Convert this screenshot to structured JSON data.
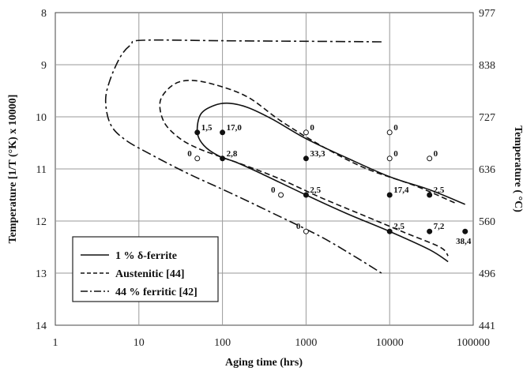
{
  "chart_data": {
    "type": "line",
    "xlabel": "Aging time (hrs)",
    "ylabel": "Temperature [1/T (°K) x 10000]",
    "ylabel_right": "Temperature ( °C)",
    "x_scale": "log",
    "xlim": [
      1,
      100000
    ],
    "ylim": [
      8,
      14
    ],
    "y_inverted": true,
    "grid": true,
    "x_ticks": [
      "1",
      "10",
      "100",
      "1000",
      "10000",
      "100000"
    ],
    "y_ticks": [
      "8",
      "9",
      "10",
      "11",
      "12",
      "13",
      "14"
    ],
    "y_right_ticks": [
      "977",
      "838",
      "727",
      "636",
      "560",
      "496",
      "441"
    ],
    "legend": {
      "position": "bottom-left",
      "entries": [
        {
          "series": "delta",
          "label": "1 % δ-ferrite"
        },
        {
          "series": "austenitic",
          "label": "Austenitic [44]"
        },
        {
          "series": "ferritic",
          "label": "44 % ferritic [42]"
        }
      ]
    },
    "series": [
      {
        "key": "delta",
        "name": "1 % δ-ferrite",
        "style": "solid",
        "points": [
          [
            80000,
            11.68
          ],
          [
            30000,
            11.4
          ],
          [
            10000,
            11.15
          ],
          [
            3000,
            10.78
          ],
          [
            1000,
            10.42
          ],
          [
            400,
            10.05
          ],
          [
            200,
            9.82
          ],
          [
            120,
            9.74
          ],
          [
            80,
            9.78
          ],
          [
            55,
            9.95
          ],
          [
            50,
            10.3
          ],
          [
            60,
            10.55
          ],
          [
            90,
            10.75
          ],
          [
            150,
            10.88
          ],
          [
            300,
            11.1
          ],
          [
            1000,
            11.5
          ],
          [
            3000,
            11.85
          ],
          [
            10000,
            12.2
          ],
          [
            30000,
            12.55
          ],
          [
            50000,
            12.78
          ]
        ]
      },
      {
        "key": "austenitic",
        "name": "Austenitic [44]",
        "style": "dashed",
        "points": [
          [
            60000,
            11.65
          ],
          [
            20000,
            11.32
          ],
          [
            5000,
            10.98
          ],
          [
            1500,
            10.55
          ],
          [
            500,
            10.08
          ],
          [
            200,
            9.62
          ],
          [
            80,
            9.38
          ],
          [
            40,
            9.3
          ],
          [
            25,
            9.4
          ],
          [
            18,
            9.7
          ],
          [
            20,
            10.1
          ],
          [
            30,
            10.4
          ],
          [
            50,
            10.6
          ],
          [
            100,
            10.78
          ],
          [
            200,
            10.95
          ],
          [
            500,
            11.2
          ],
          [
            1500,
            11.55
          ],
          [
            5000,
            11.9
          ],
          [
            15000,
            12.22
          ],
          [
            40000,
            12.5
          ],
          [
            50000,
            12.67
          ]
        ]
      },
      {
        "key": "ferritic",
        "name": "44 % ferritic [42]",
        "style": "dashdot",
        "points": [
          [
            8000,
            8.56
          ],
          [
            1000,
            8.55
          ],
          [
            100,
            8.54
          ],
          [
            11,
            8.53
          ],
          [
            8,
            8.62
          ],
          [
            6,
            8.85
          ],
          [
            4.5,
            9.3
          ],
          [
            4,
            9.7
          ],
          [
            4.6,
            10.15
          ],
          [
            7,
            10.45
          ],
          [
            15,
            10.75
          ],
          [
            40,
            11.1
          ],
          [
            120,
            11.45
          ],
          [
            400,
            11.85
          ],
          [
            1500,
            12.3
          ],
          [
            4000,
            12.7
          ],
          [
            8000,
            13
          ]
        ]
      }
    ],
    "points": [
      {
        "x": 50,
        "y": 10.3,
        "filled": true,
        "label": "1,5"
      },
      {
        "x": 100,
        "y": 10.3,
        "filled": true,
        "label": "17,0"
      },
      {
        "x": 100,
        "y": 10.8,
        "filled": true,
        "label": "2,8"
      },
      {
        "x": 50,
        "y": 10.8,
        "filled": false,
        "label": "0"
      },
      {
        "x": 1000,
        "y": 10.3,
        "filled": false,
        "label": "0"
      },
      {
        "x": 1000,
        "y": 10.8,
        "filled": true,
        "label": "33,3"
      },
      {
        "x": 1000,
        "y": 11.5,
        "filled": true,
        "label": "2,5"
      },
      {
        "x": 500,
        "y": 11.5,
        "filled": false,
        "label": "0"
      },
      {
        "x": 1000,
        "y": 12.2,
        "filled": false,
        "label": "0"
      },
      {
        "x": 10000,
        "y": 10.3,
        "filled": false,
        "label": "0"
      },
      {
        "x": 10000,
        "y": 10.8,
        "filled": false,
        "label": "0"
      },
      {
        "x": 10000,
        "y": 11.5,
        "filled": true,
        "label": "17,4"
      },
      {
        "x": 10000,
        "y": 12.2,
        "filled": true,
        "label": "2,5"
      },
      {
        "x": 30000,
        "y": 10.8,
        "filled": false,
        "label": "0"
      },
      {
        "x": 30000,
        "y": 11.5,
        "filled": true,
        "label": "2,5"
      },
      {
        "x": 30000,
        "y": 12.2,
        "filled": true,
        "label": "7,2"
      },
      {
        "x": 80000,
        "y": 12.2,
        "filled": true,
        "label": "38,4"
      }
    ]
  }
}
